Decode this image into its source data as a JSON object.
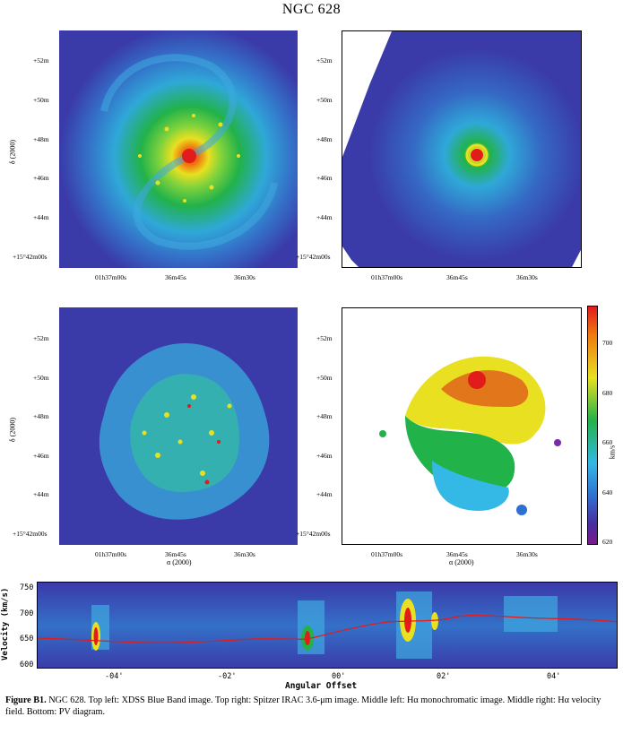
{
  "figure": {
    "title": "NGC 628",
    "panels": {
      "top_left": {
        "description_axes": {
          "ylabel": "δ (2000)"
        }
      },
      "top_right": {},
      "middle_left": {
        "ylabel": "δ (2000)",
        "xlabel": "α (2000)"
      },
      "middle_right": {
        "xlabel": "α (2000)",
        "colorbar_label": "km/s"
      }
    },
    "dec_ticks": [
      "+52m",
      "+50m",
      "+48m",
      "+46m",
      "+44m",
      "+15°42m00s"
    ],
    "ra_ticks": [
      "01h37m00s",
      "36m45s",
      "36m30s"
    ],
    "colorbar_ticks": [
      "700",
      "680",
      "660",
      "640",
      "620"
    ],
    "pv": {
      "ylabel": "Velocity (km/s)",
      "xlabel": "Angular Offset",
      "yticks": [
        "750",
        "700",
        "650",
        "600"
      ],
      "xticks": [
        "-04'",
        "-02'",
        "00'",
        "02'",
        "04'"
      ]
    }
  },
  "caption": {
    "label": "Figure B1.",
    "text": "NGC 628. Top left: XDSS Blue Band image. Top right: Spitzer IRAC 3.6-μm image. Middle left: Hα monochromatic image. Middle right: Hα velocity field. Bottom: PV diagram."
  },
  "colors": {
    "background_blue": "#3a3aa8",
    "green": "#22b24a",
    "yellow": "#e8e020",
    "red": "#e21b1b",
    "cyan": "#34b8e6"
  }
}
